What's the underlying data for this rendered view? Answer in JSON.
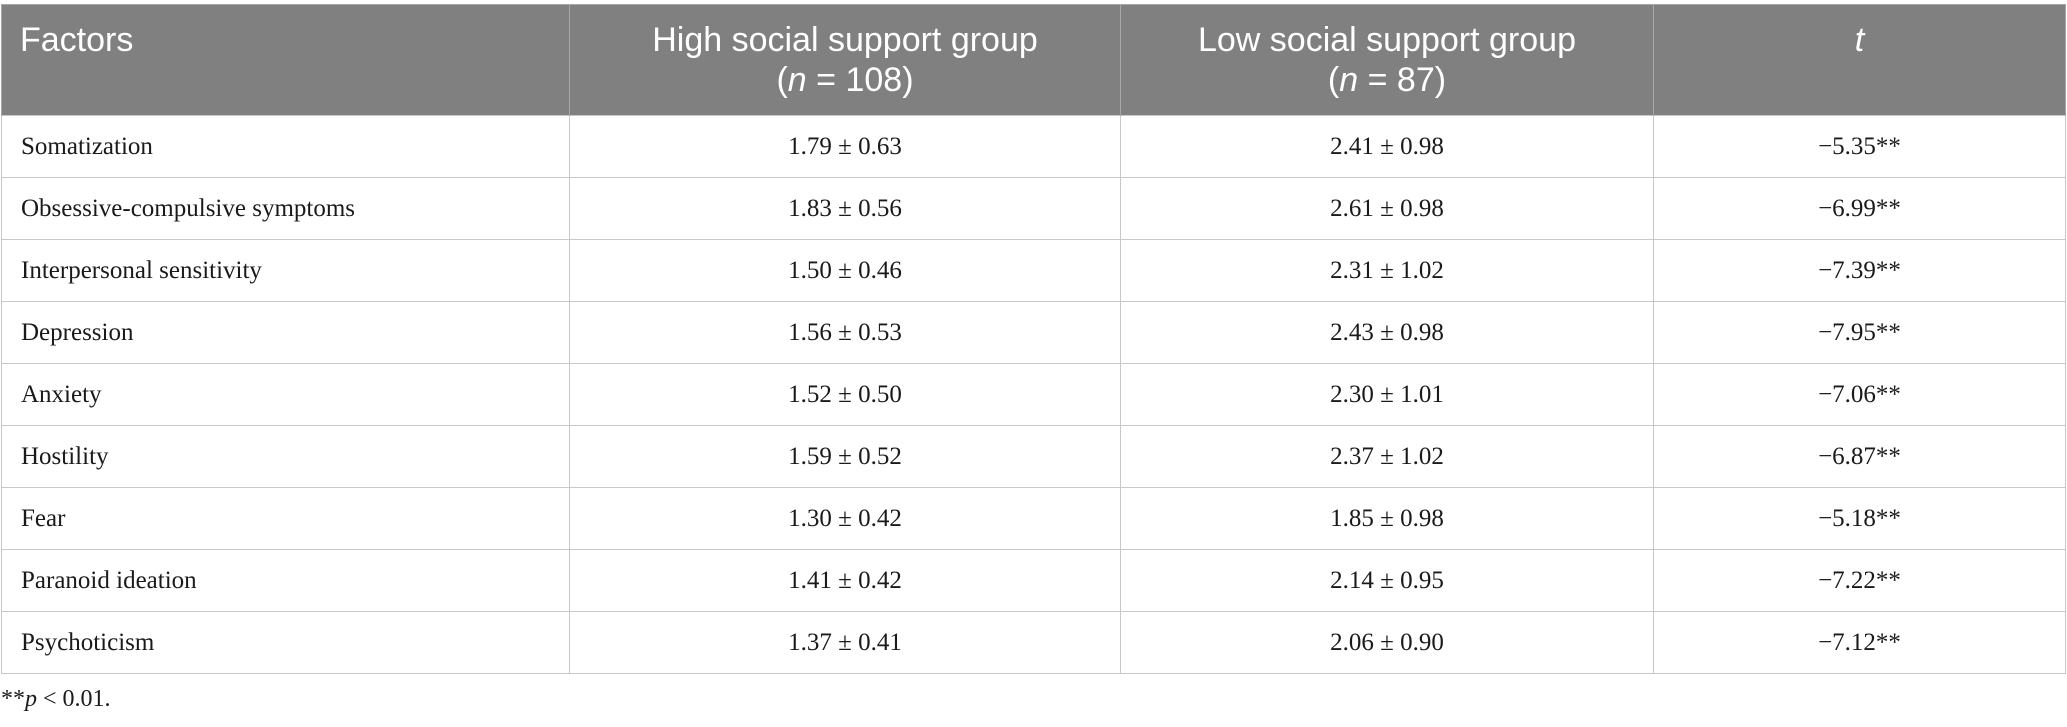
{
  "header": {
    "factors": "Factors",
    "high_group_line1": "High social support group",
    "high_group_n_label": "n",
    "high_group_n_value": " = 108)",
    "low_group_line1": "Low social support group",
    "low_group_n_label": "n",
    "low_group_n_value": " = 87)",
    "t": "t"
  },
  "rows": [
    {
      "factor": "Somatization",
      "high": "1.79 ± 0.63",
      "low": "2.41 ± 0.98",
      "t": "−5.35**"
    },
    {
      "factor": "Obsessive-compulsive symptoms",
      "high": "1.83 ± 0.56",
      "low": "2.61 ± 0.98",
      "t": "−6.99**"
    },
    {
      "factor": "Interpersonal sensitivity",
      "high": "1.50 ± 0.46",
      "low": "2.31 ± 1.02",
      "t": "−7.39**"
    },
    {
      "factor": "Depression",
      "high": "1.56 ± 0.53",
      "low": "2.43 ± 0.98",
      "t": "−7.95**"
    },
    {
      "factor": "Anxiety",
      "high": "1.52 ± 0.50",
      "low": "2.30 ± 1.01",
      "t": "−7.06**"
    },
    {
      "factor": "Hostility",
      "high": "1.59 ± 0.52",
      "low": "2.37 ± 1.02",
      "t": "−6.87**"
    },
    {
      "factor": "Fear",
      "high": "1.30 ± 0.42",
      "low": "1.85 ± 0.98",
      "t": "−5.18**"
    },
    {
      "factor": "Paranoid ideation",
      "high": "1.41 ± 0.42",
      "low": "2.14 ± 0.95",
      "t": "−7.22**"
    },
    {
      "factor": "Psychoticism",
      "high": "1.37 ± 0.41",
      "low": "2.06 ± 0.90",
      "t": "−7.12**"
    }
  ],
  "footnote": {
    "stars": "**",
    "p": "p",
    "rest": " < 0.01."
  },
  "colors": {
    "header_bg": "#808080",
    "header_text": "#ffffff",
    "grid": "#c8c8c8"
  }
}
